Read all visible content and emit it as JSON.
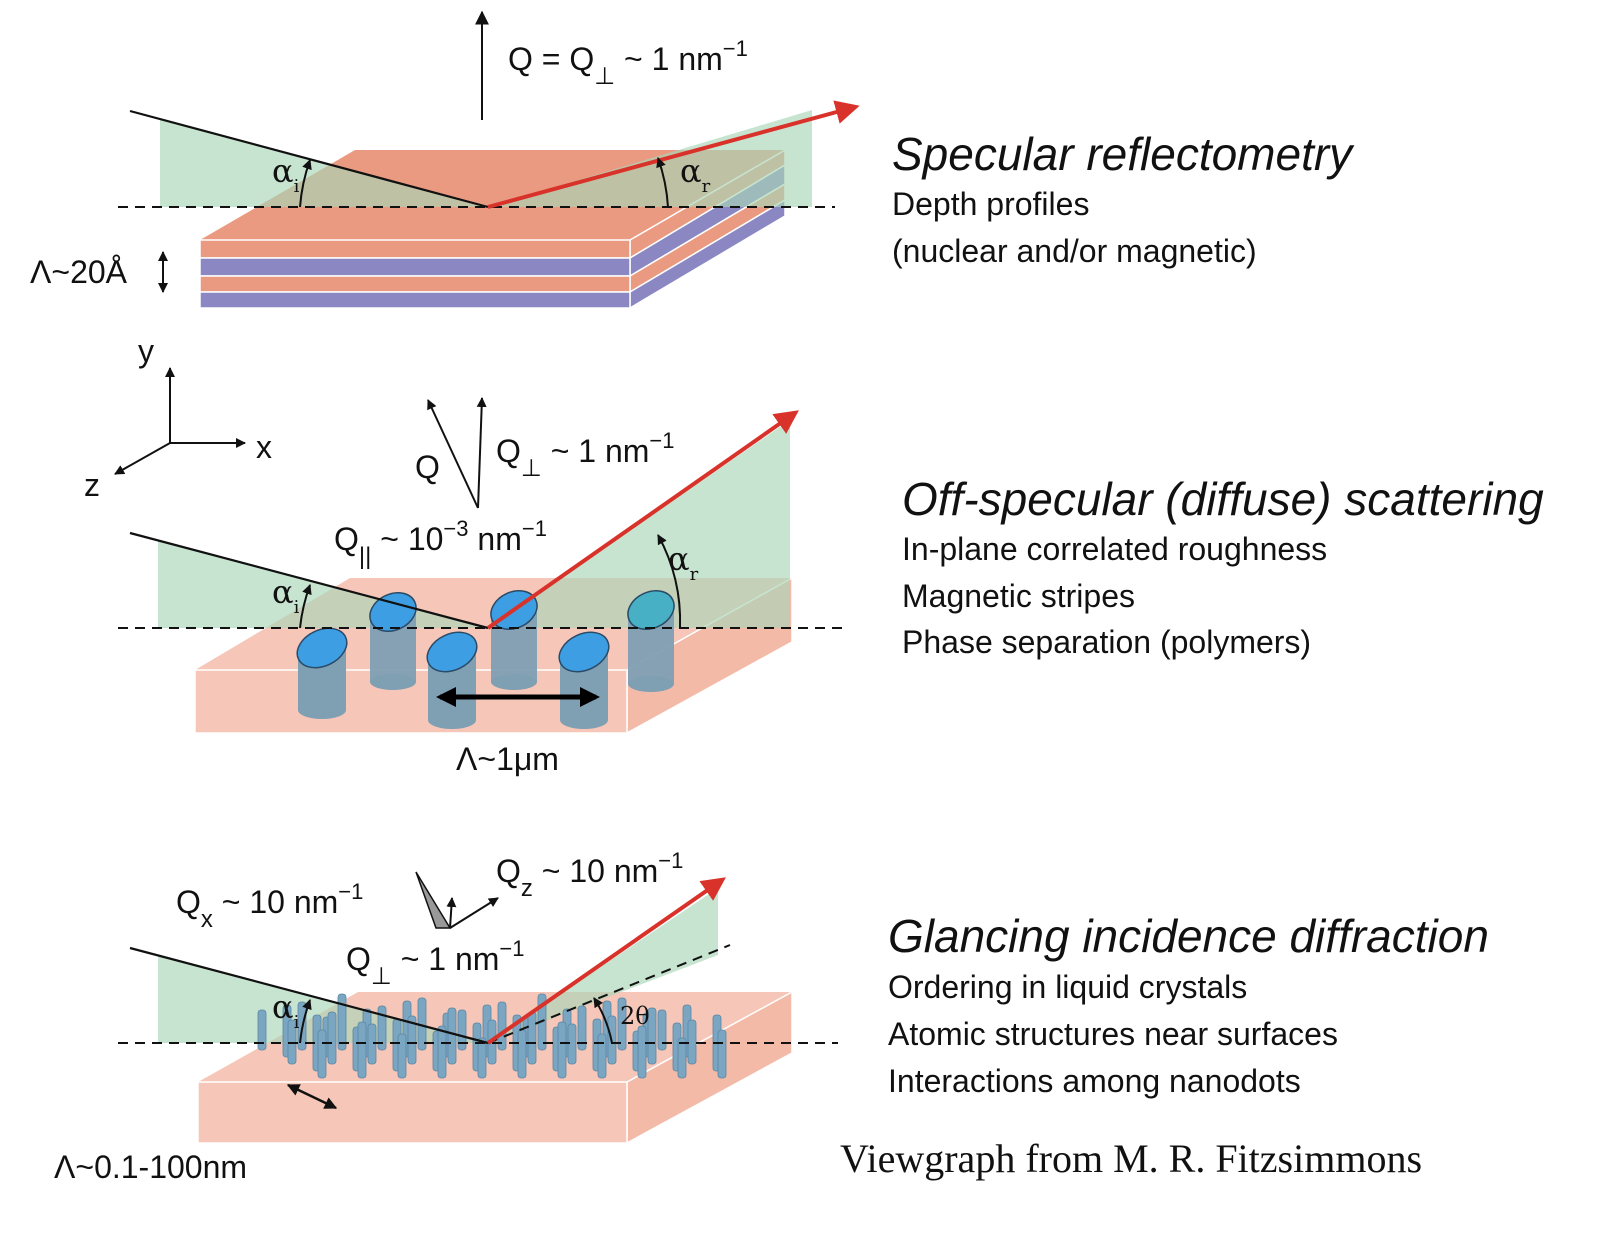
{
  "panels": [
    {
      "title": "Specular reflectometry",
      "lines": [
        "Depth profiles",
        "(nuclear and/or magnetic)"
      ],
      "q_main": "Q = Q",
      "q_sub": "⊥",
      "q_tail": " ~ 1 nm",
      "q_exp": "−1",
      "alpha_i": "α",
      "alpha_i_sub": "i",
      "alpha_r": "α",
      "alpha_r_sub": "r",
      "lambda": "Λ~20Å"
    },
    {
      "title": "Off-specular (diffuse) scattering",
      "lines": [
        "In-plane correlated roughness",
        "Magnetic stripes",
        "Phase separation (polymers)"
      ],
      "q_label": "Q",
      "qperp_main": "Q",
      "qperp_sub": "⊥",
      "qperp_tail": " ~ 1 nm",
      "qperp_exp": "−1",
      "qpar_main": "Q",
      "qpar_sub": "||",
      "qpar_tail": " ~ 10",
      "qpar_exp": "−3",
      "qpar_unit": " nm",
      "qpar_unit_exp": "−1",
      "alpha_i": "α",
      "alpha_i_sub": "i",
      "alpha_r": "α",
      "alpha_r_sub": "r",
      "lambda": "Λ~1μm",
      "axes": {
        "y": "y",
        "x": "x",
        "z": "z"
      }
    },
    {
      "title": "Glancing incidence diffraction",
      "lines": [
        "Ordering in liquid crystals",
        "Atomic structures near surfaces",
        "Interactions among nanodots"
      ],
      "qx_main": "Q",
      "qx_sub": "x",
      "qx_tail": " ~ 10 nm",
      "qx_exp": "−1",
      "qz_main": "Q",
      "qz_sub": "z",
      "qz_tail": " ~ 10 nm",
      "qz_exp": "−1",
      "qperp_main": "Q",
      "qperp_sub": "⊥",
      "qperp_tail": " ~ 1 nm",
      "qperp_exp": "−1",
      "alpha_i": "α",
      "alpha_i_sub": "i",
      "two_theta": "2θ",
      "lambda": "Λ~0.1-100nm"
    }
  ],
  "credit": "Viewgraph from M. R. Fitzsimmons",
  "colors": {
    "beam_in": "#111111",
    "beam_out": "#d9322a",
    "plane_green": "#bfe0cb",
    "layer_salmon": "#e99a80",
    "layer_purple": "#8a87c3",
    "substrate_pink": "#f6c7b8",
    "cylinder_top": "#3d9ee3",
    "cylinder_body": "#7f9fb3",
    "rod_blue": "#7aa6c2"
  }
}
